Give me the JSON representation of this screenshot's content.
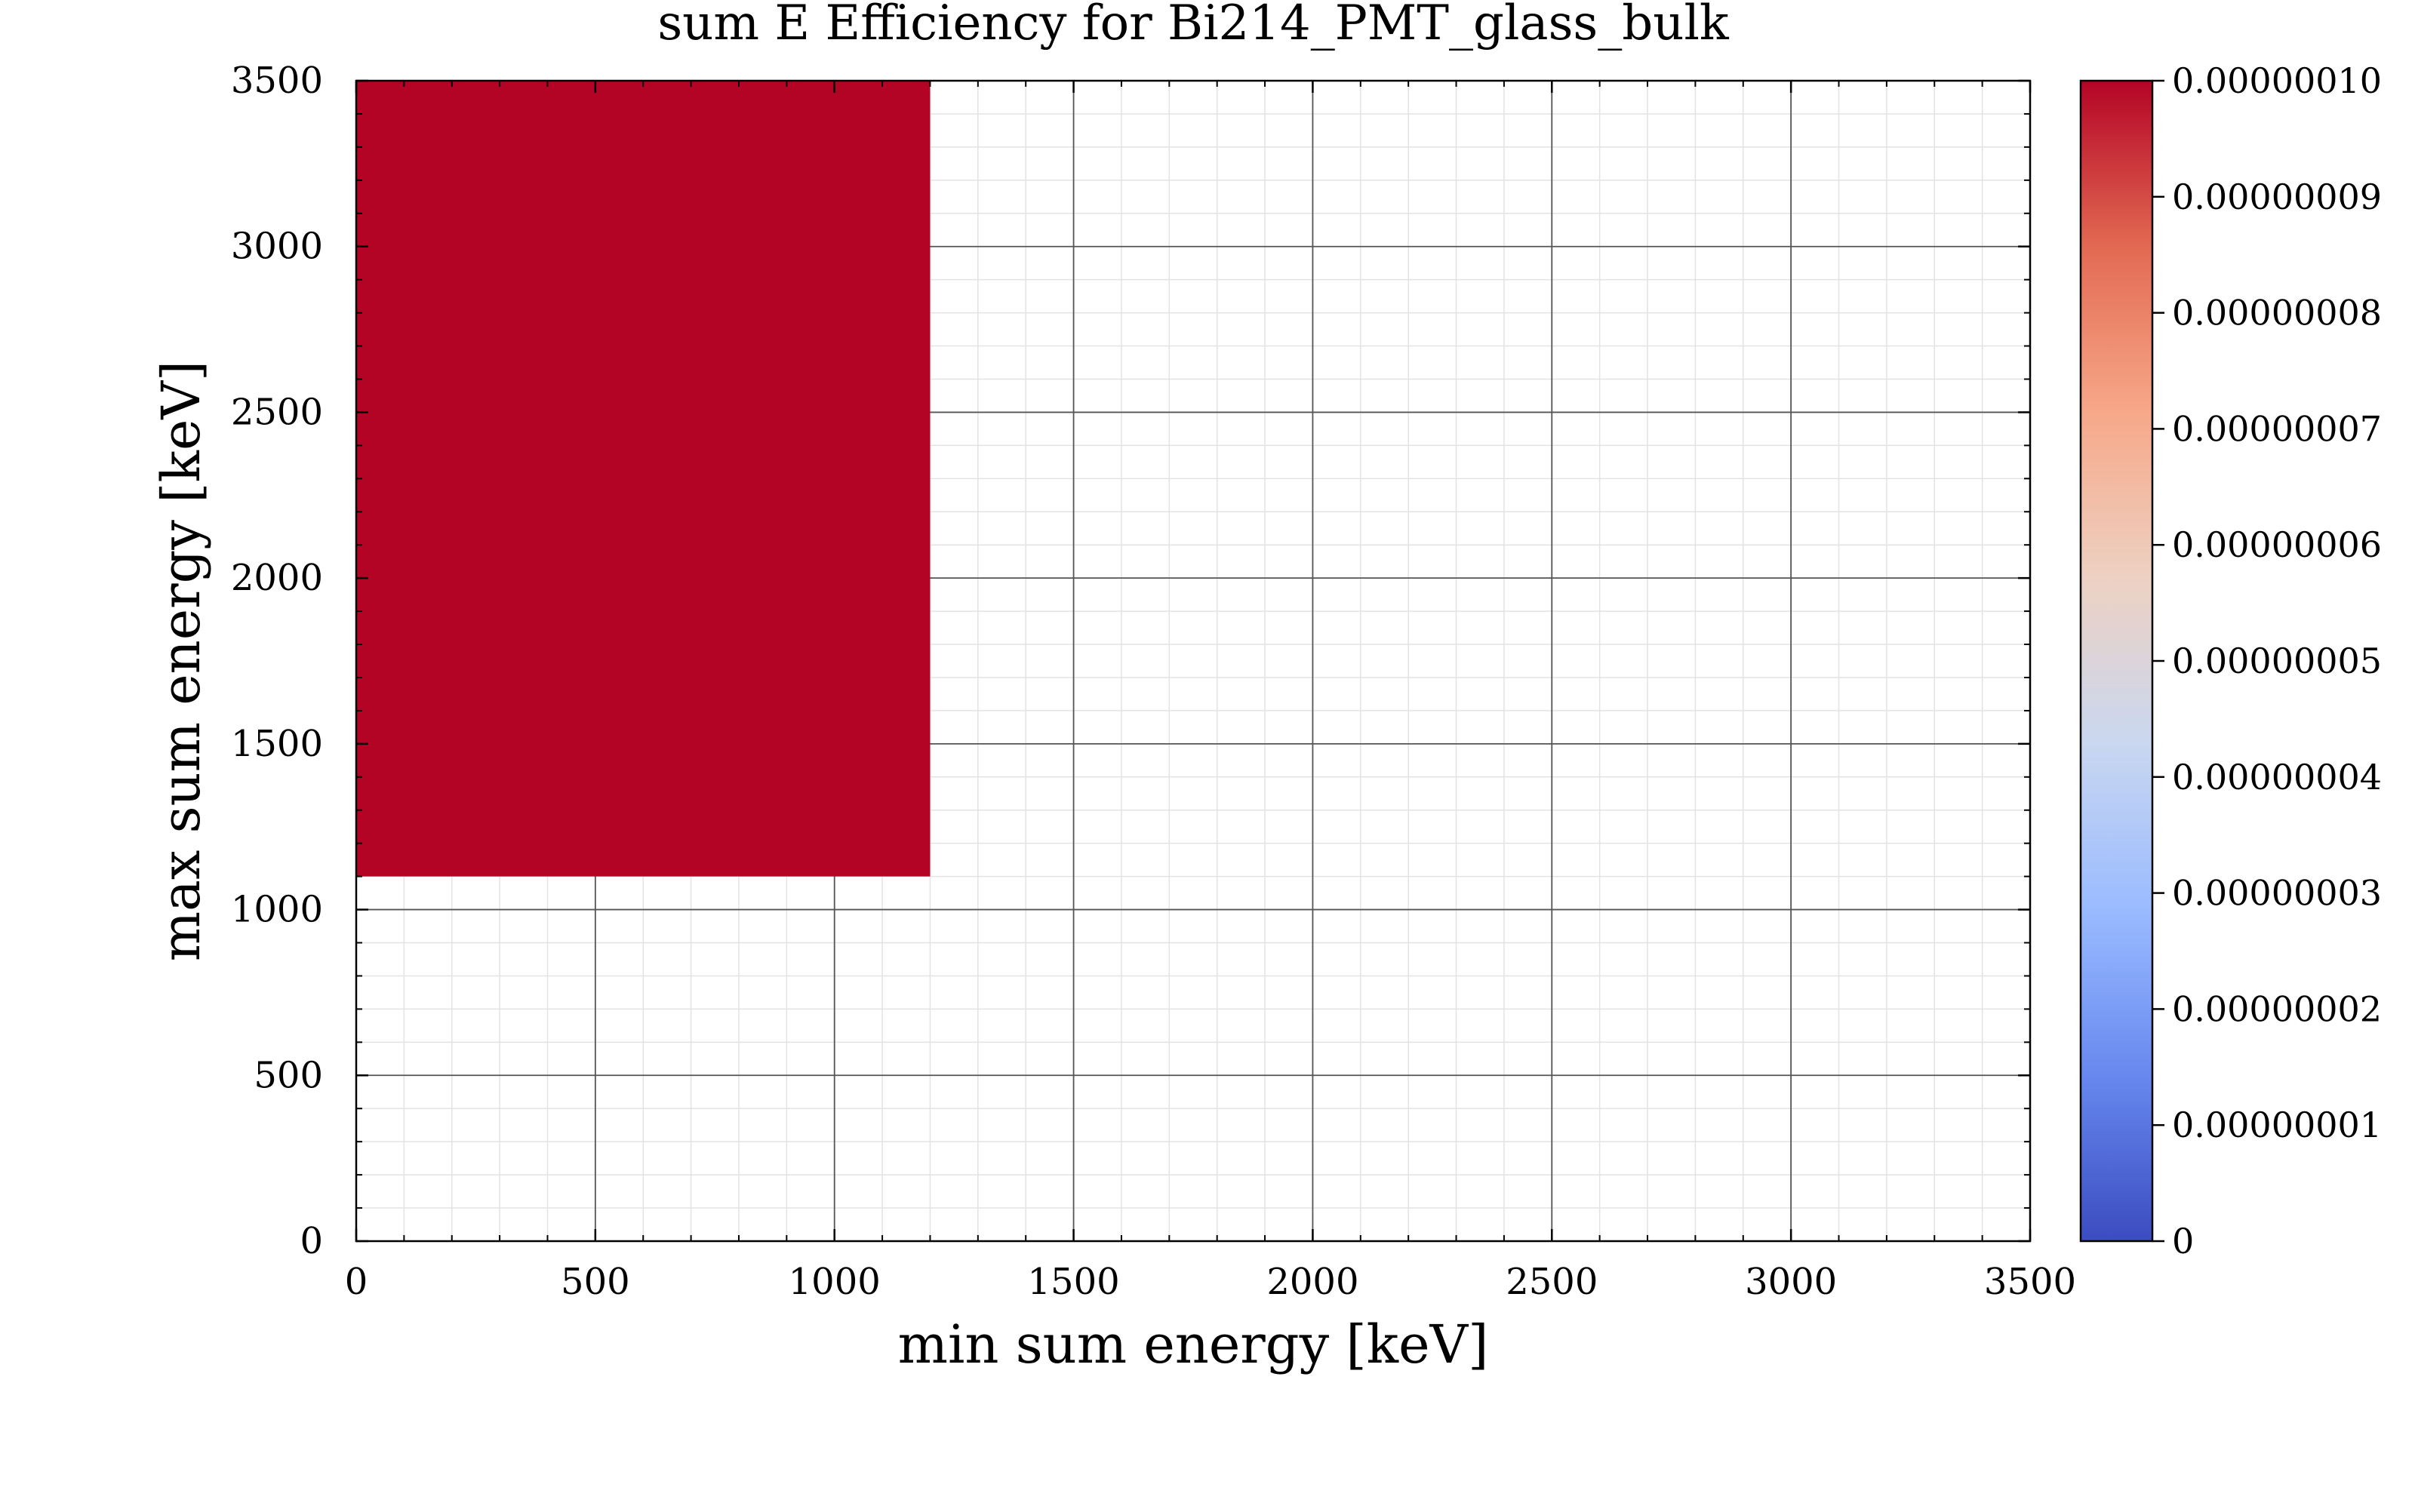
{
  "chart_data": {
    "type": "heatmap",
    "title": "sum E Efficiency for Bi214_PMT_glass_bulk",
    "xlabel": "min sum energy [keV]",
    "ylabel": "max sum energy [keV]",
    "xlim": [
      0,
      3500
    ],
    "ylim": [
      0,
      3500
    ],
    "x_ticks": [
      "0",
      "500",
      "1000",
      "1500",
      "2000",
      "2500",
      "3000",
      "3500"
    ],
    "y_ticks": [
      "0",
      "500",
      "1000",
      "1500",
      "2000",
      "2500",
      "3000",
      "3500"
    ],
    "cells": [
      {
        "x_range": [
          0,
          1200
        ],
        "y_range": [
          1100,
          3500
        ],
        "value": 1e-07
      }
    ],
    "colorbar": {
      "colormap": "coolwarm",
      "range": [
        0,
        1e-07
      ],
      "ticks": [
        "0",
        "0.00000001",
        "0.00000002",
        "0.00000003",
        "0.00000004",
        "0.00000005",
        "0.00000006",
        "0.00000007",
        "0.00000008",
        "0.00000009",
        "0.00000010"
      ],
      "stops": [
        "#3b4cc0",
        "#6788ee",
        "#9abbff",
        "#c9d7f0",
        "#edd1c2",
        "#f7a889",
        "#e26952",
        "#b40426"
      ]
    },
    "grid": true,
    "minor_grid": true
  }
}
